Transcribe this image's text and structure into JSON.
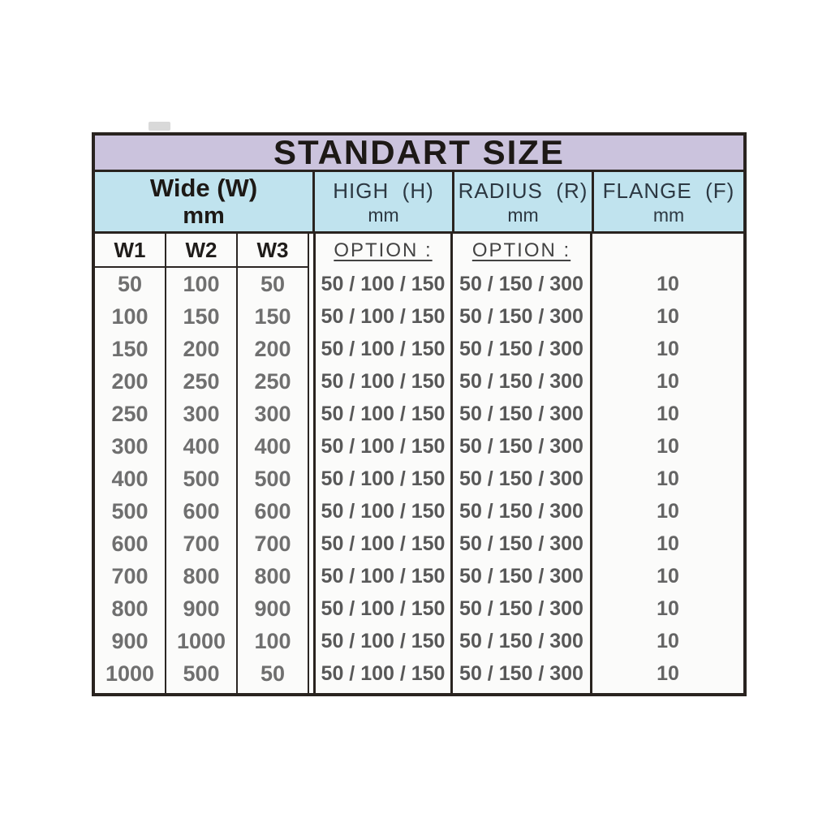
{
  "title": "STANDART SIZE",
  "colors": {
    "title_bg": "#cbc3dd",
    "header_bg": "#c0e3ee",
    "border": "#29231f",
    "header_text": "#2c3842",
    "data_text": "#6f6f6f"
  },
  "wide": {
    "label": "Wide (W)",
    "unit": "mm",
    "sub_columns": [
      "W1",
      "W2",
      "W3"
    ]
  },
  "columns": {
    "high": {
      "label": "HIGH  (H)",
      "unit": "mm",
      "option": "OPTION :",
      "values": [
        "50 / 100 / 150",
        "50 / 100 / 150",
        "50 / 100 / 150",
        "50 / 100 / 150",
        "50 / 100 / 150",
        "50 / 100 / 150",
        "50 / 100 / 150",
        "50 / 100 / 150",
        "50 / 100 / 150",
        "50 / 100 / 150",
        "50 / 100 / 150",
        "50 / 100 / 150",
        "50 / 100 / 150"
      ]
    },
    "radius": {
      "label": "RADIUS  (R)",
      "unit": "mm",
      "option": "OPTION :",
      "values": [
        "50 / 150 / 300",
        "50 / 150 / 300",
        "50 / 150 / 300",
        "50 / 150 / 300",
        "50 / 150 / 300",
        "50 / 150 / 300",
        "50 / 150 / 300",
        "50 / 150 / 300",
        "50 / 150 / 300",
        "50 / 150 / 300",
        "50 / 150 / 300",
        "50 / 150 / 300",
        "50 / 150 / 300"
      ]
    },
    "flange": {
      "label": "FLANGE  (F)",
      "unit": "mm",
      "option": "",
      "values": [
        "10",
        "10",
        "10",
        "10",
        "10",
        "10",
        "10",
        "10",
        "10",
        "10",
        "10",
        "10",
        "10"
      ]
    }
  },
  "rows": [
    [
      "50",
      "100",
      "50"
    ],
    [
      "100",
      "150",
      "150"
    ],
    [
      "150",
      "200",
      "200"
    ],
    [
      "200",
      "250",
      "250"
    ],
    [
      "250",
      "300",
      "300"
    ],
    [
      "300",
      "400",
      "400"
    ],
    [
      "400",
      "500",
      "500"
    ],
    [
      "500",
      "600",
      "600"
    ],
    [
      "600",
      "700",
      "700"
    ],
    [
      "700",
      "800",
      "800"
    ],
    [
      "800",
      "900",
      "900"
    ],
    [
      "900",
      "1000",
      "100"
    ],
    [
      "1000",
      "500",
      "50"
    ]
  ]
}
